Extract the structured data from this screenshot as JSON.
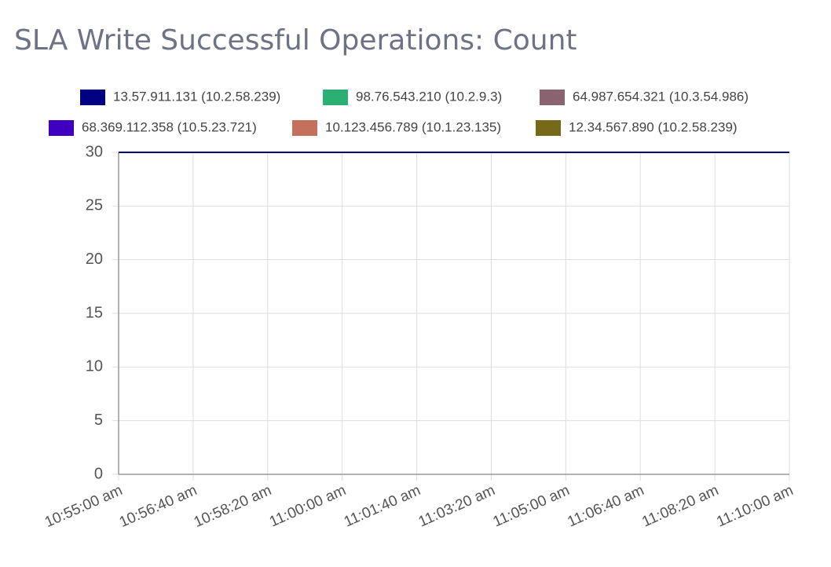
{
  "chart_data": {
    "type": "line",
    "title": "SLA Write Successful Operations: Count",
    "categories": [
      "10:55:00 am",
      "10:56:40 am",
      "10:58:20 am",
      "11:00:00 am",
      "11:01:40 am",
      "11:03:20 am",
      "11:05:00 am",
      "11:06:40 am",
      "11:08:20 am",
      "11:10:00 am"
    ],
    "series": [
      {
        "name": "13.57.911.131 (10.2.58.239)",
        "color": "#000080",
        "values": [
          30,
          30,
          30,
          30,
          30,
          30,
          30,
          30,
          30,
          30
        ]
      },
      {
        "name": "98.76.543.210 (10.2.9.3)",
        "color": "#2baf72",
        "values": [
          30,
          30,
          30,
          30,
          30,
          30,
          30,
          30,
          30,
          30
        ]
      },
      {
        "name": "64.987.654.321 (10.3.54.986)",
        "color": "#8b6270",
        "values": [
          30,
          30,
          30,
          30,
          30,
          30,
          30,
          30,
          30,
          30
        ]
      },
      {
        "name": "68.369.112.358 (10.5.23.721)",
        "color": "#3f00bf",
        "values": [
          30,
          30,
          30,
          30,
          30,
          30,
          30,
          30,
          30,
          30
        ]
      },
      {
        "name": "10.123.456.789 (10.1.23.135)",
        "color": "#c4705a",
        "values": [
          30,
          30,
          30,
          30,
          30,
          30,
          30,
          30,
          30,
          30
        ]
      },
      {
        "name": "12.34.567.890 (10.2.58.239)",
        "color": "#76691a",
        "values": [
          30,
          30,
          30,
          30,
          30,
          30,
          30,
          30,
          30,
          30
        ]
      }
    ],
    "ylim": [
      0,
      30
    ],
    "yticks": [
      0,
      5,
      10,
      15,
      20,
      25,
      30
    ],
    "grid": true
  }
}
